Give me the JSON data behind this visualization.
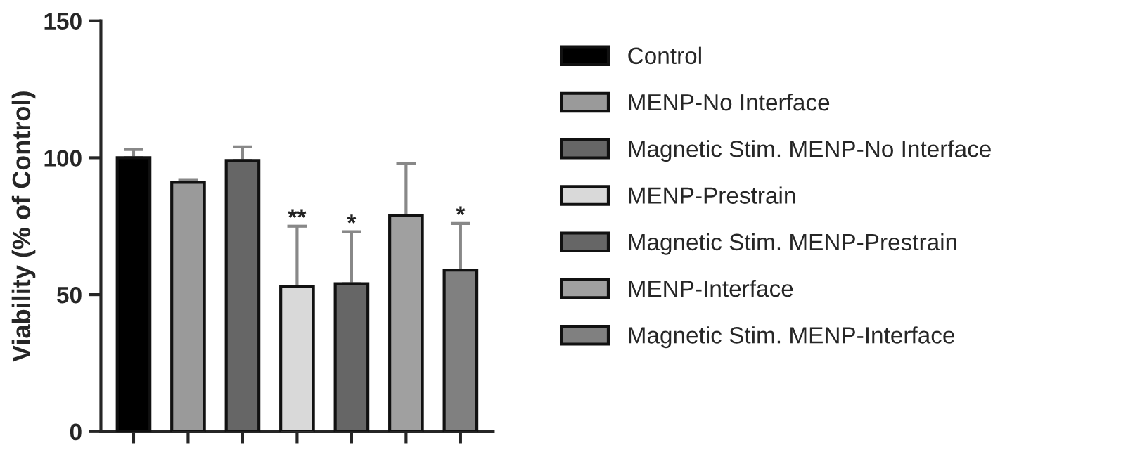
{
  "chart_data": {
    "type": "bar",
    "ylabel": "Viability (% of Control)",
    "categories": [
      null,
      null,
      null,
      null,
      null,
      null,
      null
    ],
    "ylim": [
      0,
      150
    ],
    "yticks": [
      0,
      50,
      100,
      150
    ],
    "grid": false,
    "legend": "right",
    "series": [
      {
        "name": "Control",
        "color": "#000000",
        "values": [
          100,
          null,
          null,
          null,
          null,
          null,
          null
        ],
        "errors": [
          [
            100,
            103
          ],
          null,
          null,
          null,
          null,
          null,
          null
        ]
      },
      {
        "name": "MENP-No Interface",
        "color": "#9a9a9a",
        "values": [
          null,
          91,
          null,
          null,
          null,
          null,
          null
        ],
        "errors": [
          null,
          [
            91,
            92
          ],
          null,
          null,
          null,
          null,
          null
        ]
      },
      {
        "name": "Magnetic Stim. MENP-No Interface",
        "color": "#666666",
        "values": [
          null,
          null,
          99,
          null,
          null,
          null,
          null
        ],
        "errors": [
          null,
          null,
          [
            99,
            104
          ],
          null,
          null,
          null,
          null
        ]
      },
      {
        "name": "MENP-Prestrain",
        "color": "#d9d9d9",
        "values": [
          null,
          null,
          null,
          53,
          null,
          null,
          null
        ],
        "errors": [
          null,
          null,
          null,
          [
            53,
            75
          ],
          null,
          null,
          null
        ],
        "value_labels": [
          null,
          null,
          null,
          "**",
          null,
          null,
          null
        ]
      },
      {
        "name": "Magnetic Stim. MENP-Prestrain",
        "color": "#666666",
        "values": [
          null,
          null,
          null,
          null,
          54,
          null,
          null
        ],
        "errors": [
          null,
          null,
          null,
          null,
          [
            54,
            73
          ],
          null,
          null
        ],
        "value_labels": [
          null,
          null,
          null,
          null,
          "*",
          null,
          null
        ]
      },
      {
        "name": "MENP-Interface",
        "color": "#a0a0a0",
        "values": [
          null,
          null,
          null,
          null,
          null,
          79,
          null
        ],
        "errors": [
          null,
          null,
          null,
          null,
          null,
          [
            79,
            98
          ],
          null
        ]
      },
      {
        "name": "Magnetic Stim. MENP-Interface",
        "color": "#808080",
        "values": [
          null,
          null,
          null,
          null,
          null,
          null,
          59
        ],
        "errors": [
          null,
          null,
          null,
          null,
          null,
          null,
          [
            59,
            76
          ]
        ],
        "value_labels": [
          null,
          null,
          null,
          null,
          null,
          null,
          "*"
        ]
      }
    ]
  }
}
